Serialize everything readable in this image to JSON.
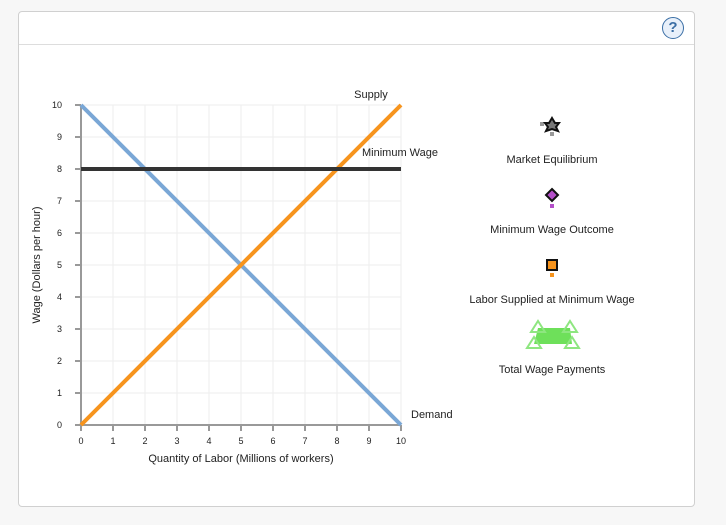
{
  "header": {
    "help_label": "?"
  },
  "chart_data": {
    "type": "line",
    "xlabel": "Quantity of Labor   (Millions of workers)",
    "ylabel": "Wage (Dollars per hour)",
    "xlim": [
      0,
      10
    ],
    "ylim": [
      0,
      10
    ],
    "xticks": [
      0,
      1,
      2,
      3,
      4,
      5,
      6,
      7,
      8,
      9,
      10
    ],
    "yticks": [
      0,
      1,
      2,
      3,
      4,
      5,
      6,
      7,
      8,
      9,
      10
    ],
    "grid": true,
    "series": [
      {
        "name": "Demand",
        "color": "#7aa7d6",
        "x": [
          0,
          10
        ],
        "y": [
          10,
          0
        ]
      },
      {
        "name": "Supply",
        "color": "#f7941d",
        "x": [
          0,
          10
        ],
        "y": [
          0,
          10
        ]
      },
      {
        "name": "Minimum Wage",
        "color": "#333333",
        "x": [
          0,
          10
        ],
        "y": [
          8,
          8
        ]
      }
    ]
  },
  "legend": [
    {
      "label": "Market Equilibrium",
      "icon": "star-icon",
      "color": "#777777"
    },
    {
      "label": "Minimum Wage Outcome",
      "icon": "diamond-icon",
      "color": "#b44fc9"
    },
    {
      "label": "Labor Supplied at Minimum Wage",
      "icon": "square-icon",
      "color": "#f7941d"
    },
    {
      "label": "Total Wage Payments",
      "icon": "area-icon",
      "color": "#6ee05a"
    }
  ]
}
